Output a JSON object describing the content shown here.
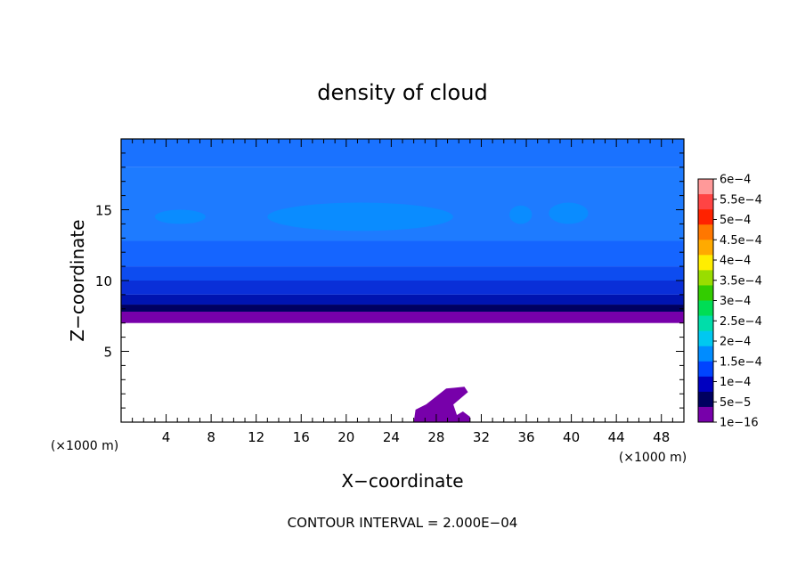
{
  "chart_data": {
    "type": "heatmap",
    "title": "density of cloud",
    "xlabel": "X−coordinate",
    "ylabel": "Z−coordinate",
    "x_unit_left": "(×1000 m)",
    "x_unit_right": "(×1000 m)",
    "xlim": [
      0,
      50
    ],
    "ylim": [
      0,
      20
    ],
    "x_ticks": [
      4,
      8,
      12,
      16,
      20,
      24,
      28,
      32,
      36,
      40,
      44,
      48
    ],
    "x_tick_labels": [
      "4",
      "8",
      "12",
      "16",
      "20",
      "24",
      "28",
      "32",
      "36",
      "40",
      "44",
      "48"
    ],
    "y_ticks": [
      5,
      10,
      15
    ],
    "y_tick_labels": [
      "5",
      "10",
      "15"
    ],
    "footer": "CONTOUR INTERVAL = 2.000E−04",
    "colorbar": {
      "labels": [
        "6e−4",
        "5.5e−4",
        "5e−4",
        "4.5e−4",
        "4e−4",
        "3.5e−4",
        "3e−4",
        "2.5e−4",
        "2e−4",
        "1.5e−4",
        "1e−4",
        "5e−5",
        "1e−16"
      ],
      "colors": [
        "#ff9999",
        "#ff4444",
        "#ff2200",
        "#ff7700",
        "#ffaa00",
        "#ffee00",
        "#99dd00",
        "#33cc00",
        "#00dd55",
        "#00ddaa",
        "#00c8f0",
        "#008cff",
        "#0044ff",
        "#0000c0",
        "#000060",
        "#7700aa"
      ]
    },
    "layers": [
      {
        "z_bottom": 18.0,
        "z_top": 20.0,
        "level": "1e−4",
        "color": "#1a72ff"
      },
      {
        "z_bottom": 12.8,
        "z_top": 18.0,
        "level": "1e−4",
        "color": "#1e7bff"
      },
      {
        "z_bottom": 11.0,
        "z_top": 12.8,
        "level": "1e−4",
        "color": "#1565ff"
      },
      {
        "z_bottom": 10.0,
        "z_top": 11.0,
        "level": "5e−5",
        "color": "#0d4cf0"
      },
      {
        "z_bottom": 9.0,
        "z_top": 10.0,
        "level": "5e−5",
        "color": "#0a2fd8"
      },
      {
        "z_bottom": 8.3,
        "z_top": 9.0,
        "level": "5e−5",
        "color": "#0014b0"
      },
      {
        "z_bottom": 7.8,
        "z_top": 8.3,
        "level": "5e−5",
        "color": "#000060"
      },
      {
        "z_bottom": 7.0,
        "z_top": 7.8,
        "level": "1e−16",
        "color": "#7700aa"
      }
    ],
    "highlights": [
      {
        "x_start": 3.0,
        "x_end": 7.5,
        "z_bottom": 14.0,
        "z_top": 15.0,
        "level": "1.5e−4",
        "color": "#0a8cff"
      },
      {
        "x_start": 13.0,
        "x_end": 29.5,
        "z_bottom": 13.5,
        "z_top": 15.5,
        "level": "1.5e−4",
        "color": "#0a8cff"
      },
      {
        "x_start": 34.5,
        "x_end": 36.5,
        "z_bottom": 14.0,
        "z_top": 15.3,
        "level": "1.5e−4",
        "color": "#0a8cff"
      },
      {
        "x_start": 38.0,
        "x_end": 41.5,
        "z_bottom": 14.0,
        "z_top": 15.5,
        "level": "1.5e−4",
        "color": "#0a8cff"
      }
    ],
    "low_cloud": {
      "x_start": 26.0,
      "x_end": 31.0,
      "z_bottom": 0.0,
      "z_top": 2.5,
      "level": "1e−16",
      "color": "#7700aa"
    }
  }
}
